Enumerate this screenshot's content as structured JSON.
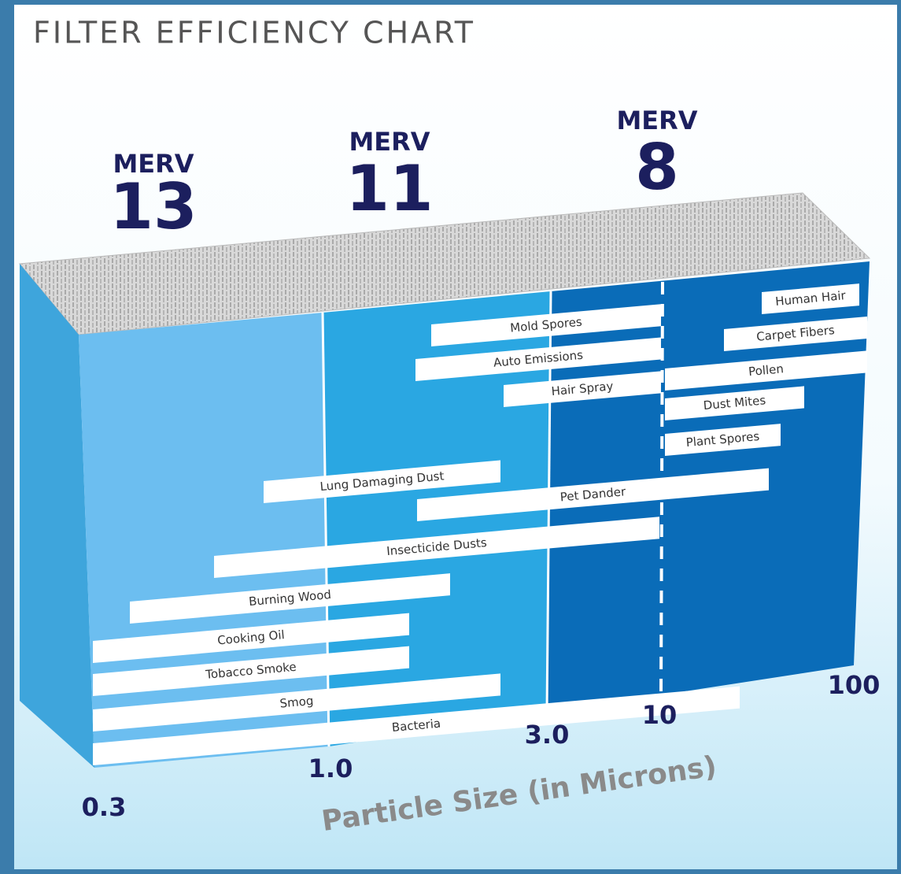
{
  "title": "FILTER EFFICIENCY CHART",
  "merv": [
    {
      "label": "MERV",
      "number": "13"
    },
    {
      "label": "MERV",
      "number": "11"
    },
    {
      "label": "MERV",
      "number": "8"
    }
  ],
  "particles": [
    "Human Hair",
    "Carpet Fibers",
    "Mold Spores",
    "Auto Emissions",
    "Pollen",
    "Hair Spray",
    "Dust Mites",
    "Plant Spores",
    "Lung Damaging Dust",
    "Pet Dander",
    "Insecticide Dusts",
    "Burning Wood",
    "Cooking Oil",
    "Tobacco Smoke",
    "Smog",
    "Bacteria"
  ],
  "axis_ticks": [
    "0.3",
    "1.0",
    "3.0",
    "10",
    "100"
  ],
  "axis_label": "Particle Size (in Microns)"
}
